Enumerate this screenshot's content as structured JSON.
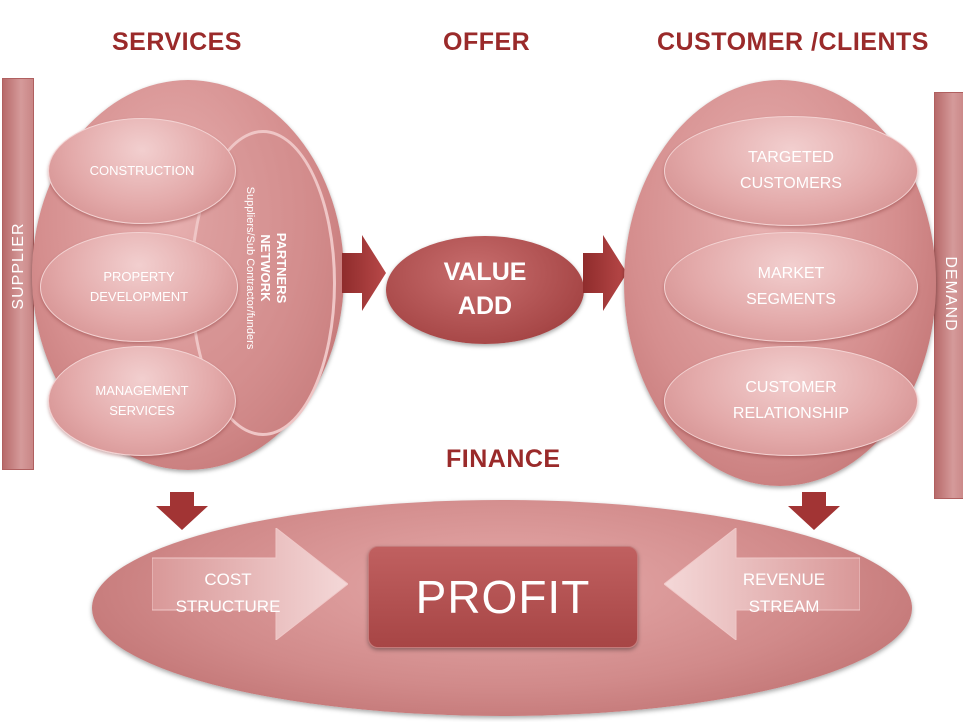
{
  "headings": {
    "services": "SERVICES",
    "offer": "OFFER",
    "customers": "CUSTOMER /CLIENTS",
    "finance": "FINANCE"
  },
  "sides": {
    "supplier": "SUPPLIER",
    "demand": "DEMAND"
  },
  "services": {
    "construction": [
      "CONSTRUCTION"
    ],
    "property": [
      "PROPERTY",
      "DEVELOPMENT"
    ],
    "management": [
      "MANAGEMENT",
      "SERVICES"
    ],
    "partners_title_1": "PARTNERS",
    "partners_title_2": "NETWORK",
    "partners_sub": "Suppliers/Sub  Contractor/funders"
  },
  "offer": {
    "line1": "VALUE",
    "line2": "ADD"
  },
  "customers": {
    "targeted": [
      "TARGETED",
      "CUSTOMERS"
    ],
    "market": [
      "MARKET",
      "SEGMENTS"
    ],
    "relationship": [
      "CUSTOMER",
      "RELATIONSHIP"
    ]
  },
  "finance": {
    "cost": [
      "COST",
      "STRUCTURE"
    ],
    "profit": "PROFIT",
    "revenue": [
      "REVENUE",
      "STREAM"
    ]
  },
  "colors": {
    "heading": "#9a2a2a",
    "arrow_dark": "#a23434",
    "oval_light": "#e7b0b0",
    "value_oval": "#a84848"
  }
}
